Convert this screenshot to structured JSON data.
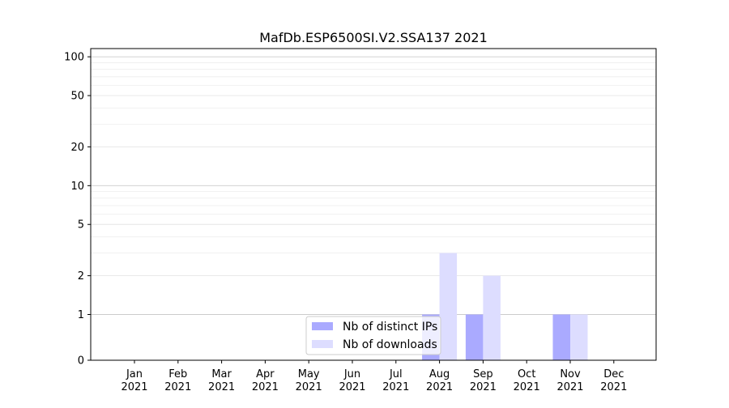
{
  "chart_data": {
    "type": "bar",
    "title": "MafDb.ESP6500SI.V2.SSA137 2021",
    "xlabel": "",
    "ylabel": "",
    "yscale": "symlog",
    "ylim": [
      0,
      100
    ],
    "y_ticks": [
      "0",
      "1",
      "2",
      "5",
      "10",
      "20",
      "50",
      "100"
    ],
    "categories": [
      {
        "month": "Jan",
        "year": "2021"
      },
      {
        "month": "Feb",
        "year": "2021"
      },
      {
        "month": "Mar",
        "year": "2021"
      },
      {
        "month": "Apr",
        "year": "2021"
      },
      {
        "month": "May",
        "year": "2021"
      },
      {
        "month": "Jun",
        "year": "2021"
      },
      {
        "month": "Jul",
        "year": "2021"
      },
      {
        "month": "Aug",
        "year": "2021"
      },
      {
        "month": "Sep",
        "year": "2021"
      },
      {
        "month": "Oct",
        "year": "2021"
      },
      {
        "month": "Nov",
        "year": "2021"
      },
      {
        "month": "Dec",
        "year": "2021"
      }
    ],
    "series": [
      {
        "name": "Nb of distinct IPs",
        "color": "#aaaaff",
        "values": [
          0,
          0,
          0,
          0,
          0,
          0,
          0,
          1,
          1,
          0,
          1,
          0
        ]
      },
      {
        "name": "Nb of downloads",
        "color": "#ddddff",
        "values": [
          0,
          0,
          0,
          0,
          0,
          0,
          0,
          3,
          2,
          0,
          1,
          0
        ]
      }
    ],
    "legend": "lower-center",
    "grid": true
  }
}
